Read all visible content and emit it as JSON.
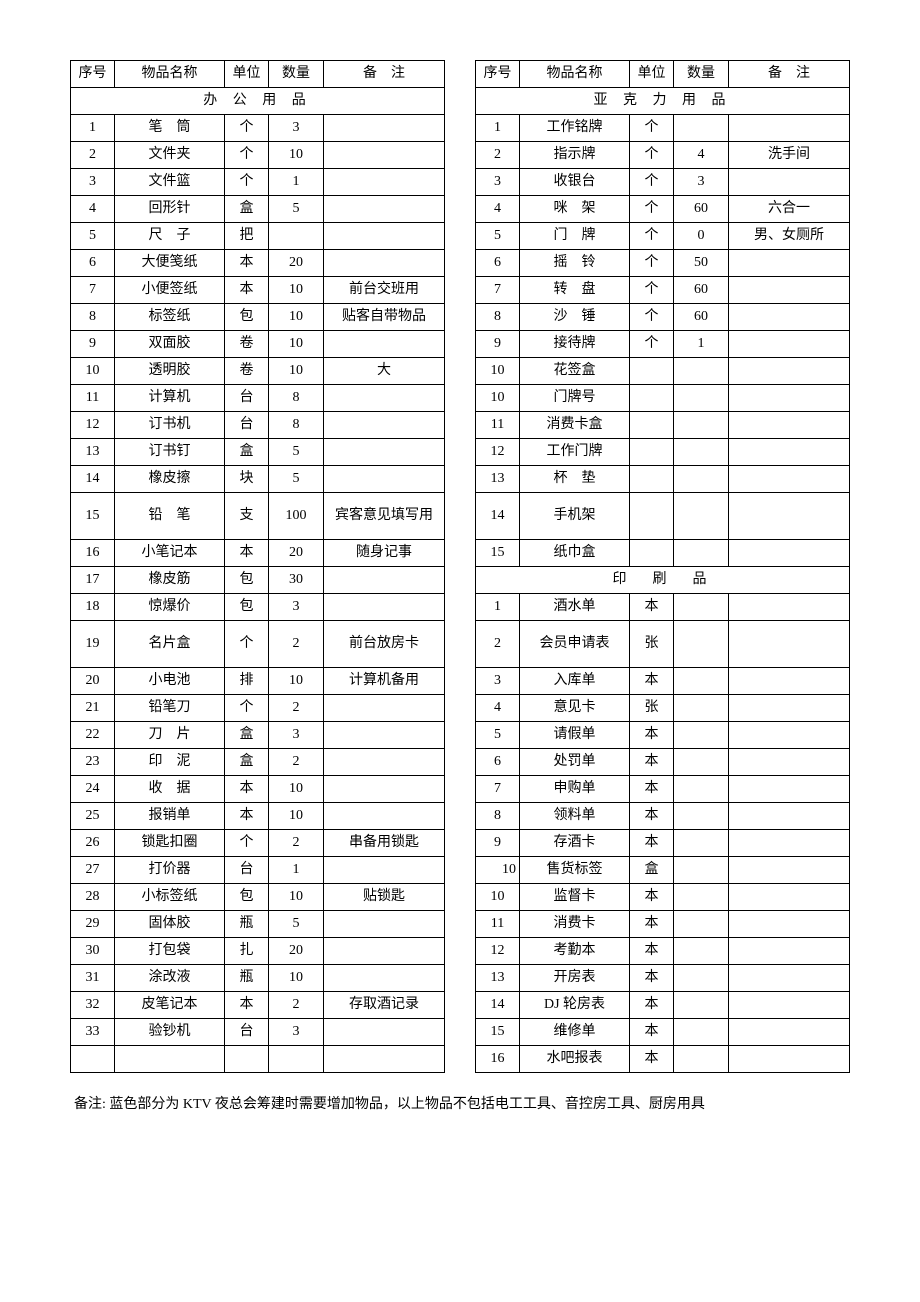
{
  "headers": {
    "seq": "序号",
    "name": "物品名称",
    "unit": "单位",
    "qty": "数量",
    "note": "备　注"
  },
  "left": {
    "section1": "办 公 用 品",
    "rows": [
      {
        "seq": "1",
        "name": "笔　筒",
        "unit": "个",
        "qty": "3",
        "note": ""
      },
      {
        "seq": "2",
        "name": "文件夹",
        "unit": "个",
        "qty": "10",
        "note": ""
      },
      {
        "seq": "3",
        "name": "文件篮",
        "unit": "个",
        "qty": "1",
        "note": ""
      },
      {
        "seq": "4",
        "name": "回形针",
        "unit": "盒",
        "qty": "5",
        "note": ""
      },
      {
        "seq": "5",
        "name": "尺　子",
        "unit": "把",
        "qty": "",
        "note": ""
      },
      {
        "seq": "6",
        "name": "大便笺纸",
        "unit": "本",
        "qty": "20",
        "note": ""
      },
      {
        "seq": "7",
        "name": "小便签纸",
        "unit": "本",
        "qty": "10",
        "note": "前台交班用"
      },
      {
        "seq": "8",
        "name": "标签纸",
        "unit": "包",
        "qty": "10",
        "note": "贴客自带物品"
      },
      {
        "seq": "9",
        "name": "双面胶",
        "unit": "卷",
        "qty": "10",
        "note": ""
      },
      {
        "seq": "10",
        "name": "透明胶",
        "unit": "卷",
        "qty": "10",
        "note": "大"
      },
      {
        "seq": "11",
        "name": "计算机",
        "unit": "台",
        "qty": "8",
        "note": ""
      },
      {
        "seq": "12",
        "name": "订书机",
        "unit": "台",
        "qty": "8",
        "note": ""
      },
      {
        "seq": "13",
        "name": "订书钉",
        "unit": "盒",
        "qty": "5",
        "note": ""
      },
      {
        "seq": "14",
        "name": "橡皮擦",
        "unit": "块",
        "qty": "5",
        "note": ""
      },
      {
        "seq": "15",
        "name": "铅　笔",
        "unit": "支",
        "qty": "100",
        "note": "宾客意见填写用",
        "tall": true
      },
      {
        "seq": "16",
        "name": "小笔记本",
        "unit": "本",
        "qty": "20",
        "note": "随身记事"
      },
      {
        "seq": "17",
        "name": "橡皮筋",
        "unit": "包",
        "qty": "30",
        "note": ""
      },
      {
        "seq": "18",
        "name": "惊爆价",
        "unit": "包",
        "qty": "3",
        "note": ""
      },
      {
        "seq": "19",
        "name": "名片盒",
        "unit": "个",
        "qty": "2",
        "note": "前台放房卡",
        "tall": true
      },
      {
        "seq": "20",
        "name": "小电池",
        "unit": "排",
        "qty": "10",
        "note": "计算机备用"
      },
      {
        "seq": "21",
        "name": "铅笔刀",
        "unit": "个",
        "qty": "2",
        "note": ""
      },
      {
        "seq": "22",
        "name": "刀　片",
        "unit": "盒",
        "qty": "3",
        "note": ""
      },
      {
        "seq": "23",
        "name": "印　泥",
        "unit": "盒",
        "qty": "2",
        "note": ""
      },
      {
        "seq": "24",
        "name": "收　据",
        "unit": "本",
        "qty": "10",
        "note": ""
      },
      {
        "seq": "25",
        "name": "报销单",
        "unit": "本",
        "qty": "10",
        "note": ""
      },
      {
        "seq": "26",
        "name": "锁匙扣圈",
        "unit": "个",
        "qty": "2",
        "note": "串备用锁匙"
      },
      {
        "seq": "27",
        "name": "打价器",
        "unit": "台",
        "qty": "1",
        "note": ""
      },
      {
        "seq": "28",
        "name": "小标签纸",
        "unit": "包",
        "qty": "10",
        "note": "贴锁匙"
      },
      {
        "seq": "29",
        "name": "固体胶",
        "unit": "瓶",
        "qty": "5",
        "note": ""
      },
      {
        "seq": "30",
        "name": "打包袋",
        "unit": "扎",
        "qty": "20",
        "note": ""
      },
      {
        "seq": "31",
        "name": "涂改液",
        "unit": "瓶",
        "qty": "10",
        "note": ""
      },
      {
        "seq": "32",
        "name": "皮笔记本",
        "unit": "本",
        "qty": "2",
        "note": "存取酒记录"
      },
      {
        "seq": "33",
        "name": "验钞机",
        "unit": "台",
        "qty": "3",
        "note": ""
      },
      {
        "seq": "",
        "name": "",
        "unit": "",
        "qty": "",
        "note": ""
      }
    ]
  },
  "right": {
    "section1": "亚 克 力 用 品",
    "rows1": [
      {
        "seq": "1",
        "name": "工作铭牌",
        "unit": "个",
        "qty": "",
        "note": ""
      },
      {
        "seq": "2",
        "name": "指示牌",
        "unit": "个",
        "qty": "4",
        "note": "洗手间"
      },
      {
        "seq": "3",
        "name": "收银台",
        "unit": "个",
        "qty": "3",
        "note": ""
      },
      {
        "seq": "4",
        "name": "咪　架",
        "unit": "个",
        "qty": "60",
        "note": "六合一"
      },
      {
        "seq": "5",
        "name": "门　牌",
        "unit": "个",
        "qty": "0",
        "note": "男、女厕所"
      },
      {
        "seq": "6",
        "name": "摇　铃",
        "unit": "个",
        "qty": "50",
        "note": ""
      },
      {
        "seq": "7",
        "name": "转　盘",
        "unit": "个",
        "qty": "60",
        "note": ""
      },
      {
        "seq": "8",
        "name": "沙　锤",
        "unit": "个",
        "qty": "60",
        "note": ""
      },
      {
        "seq": "9",
        "name": "接待牌",
        "unit": "个",
        "qty": "1",
        "note": ""
      },
      {
        "seq": "10",
        "name": "花签盒",
        "unit": "",
        "qty": "",
        "note": ""
      },
      {
        "seq": "10",
        "name": "门牌号",
        "unit": "",
        "qty": "",
        "note": ""
      },
      {
        "seq": "11",
        "name": "消费卡盒",
        "unit": "",
        "qty": "",
        "note": ""
      },
      {
        "seq": "12",
        "name": "工作门牌",
        "unit": "",
        "qty": "",
        "note": ""
      },
      {
        "seq": "13",
        "name": "杯　垫",
        "unit": "",
        "qty": "",
        "note": ""
      },
      {
        "seq": "14",
        "name": "手机架",
        "unit": "",
        "qty": "",
        "note": "",
        "tall": true
      },
      {
        "seq": "15",
        "name": "纸巾盒",
        "unit": "",
        "qty": "",
        "note": ""
      }
    ],
    "section2": "印　刷　品",
    "rows2": [
      {
        "seq": "1",
        "name": "酒水单",
        "unit": "本",
        "qty": "",
        "note": ""
      },
      {
        "seq": "2",
        "name": "会员申请表",
        "unit": "张",
        "qty": "",
        "note": "",
        "tall": true
      },
      {
        "seq": "3",
        "name": "入库单",
        "unit": "本",
        "qty": "",
        "note": ""
      },
      {
        "seq": "4",
        "name": "意见卡",
        "unit": "张",
        "qty": "",
        "note": ""
      },
      {
        "seq": "5",
        "name": "请假单",
        "unit": "本",
        "qty": "",
        "note": ""
      },
      {
        "seq": "6",
        "name": "处罚单",
        "unit": "本",
        "qty": "",
        "note": ""
      },
      {
        "seq": "7",
        "name": "申购单",
        "unit": "本",
        "qty": "",
        "note": ""
      },
      {
        "seq": "8",
        "name": "领料单",
        "unit": "本",
        "qty": "",
        "note": ""
      },
      {
        "seq": "9",
        "name": "存酒卡",
        "unit": "本",
        "qty": "",
        "note": ""
      },
      {
        "seq": "10",
        "name": "售货标签",
        "unit": "盒",
        "qty": "",
        "note": "",
        "alignSeqRight": true
      },
      {
        "seq": "10",
        "name": "监督卡",
        "unit": "本",
        "qty": "",
        "note": ""
      },
      {
        "seq": "11",
        "name": "消费卡",
        "unit": "本",
        "qty": "",
        "note": ""
      },
      {
        "seq": "12",
        "name": "考勤本",
        "unit": "本",
        "qty": "",
        "note": ""
      },
      {
        "seq": "13",
        "name": "开房表",
        "unit": "本",
        "qty": "",
        "note": ""
      },
      {
        "seq": "14",
        "name": "DJ 轮房表",
        "unit": "本",
        "qty": "",
        "note": ""
      },
      {
        "seq": "15",
        "name": "维修单",
        "unit": "本",
        "qty": "",
        "note": ""
      },
      {
        "seq": "16",
        "name": "水吧报表",
        "unit": "本",
        "qty": "",
        "note": ""
      }
    ]
  },
  "footnote": "备注: 蓝色部分为 KTV 夜总会筹建时需要增加物品，以上物品不包括电工工具、音控房工具、厨房用具"
}
